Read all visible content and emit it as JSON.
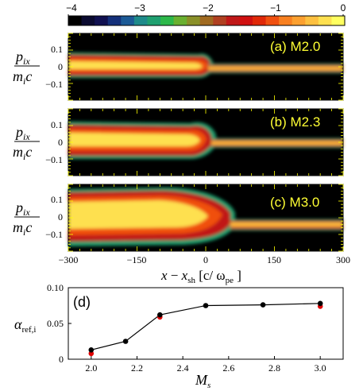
{
  "colorbar": {
    "ticks": [
      "−4",
      "−3",
      "−2",
      "−1",
      "0"
    ],
    "colors": [
      "#000000",
      "#0a0a30",
      "#101050",
      "#14307a",
      "#1c5a96",
      "#1e8a8a",
      "#1fa070",
      "#2db84a",
      "#6ab030",
      "#8a9028",
      "#a06a20",
      "#b04020",
      "#c01818",
      "#d01010",
      "#e02808",
      "#f05010",
      "#f88020",
      "#fca030",
      "#fdc040",
      "#fee050",
      "#ffff60"
    ]
  },
  "panels": [
    {
      "label": "(a) M2.0",
      "ylabel_num": "p",
      "ylabel_num_sub": "ix",
      "ylabel_den": "m",
      "ylabel_den_sub": "i",
      "ylabel_den_tail": "c",
      "yticks": [
        "0.1",
        "0",
        "−0.1"
      ]
    },
    {
      "label": "(b) M2.3",
      "ylabel_num": "p",
      "ylabel_num_sub": "ix",
      "ylabel_den": "m",
      "ylabel_den_sub": "i",
      "ylabel_den_tail": "c",
      "yticks": [
        "0.1",
        "0",
        "−0.1"
      ]
    },
    {
      "label": "(c) M3.0",
      "ylabel_num": "p",
      "ylabel_num_sub": "ix",
      "ylabel_den": "m",
      "ylabel_den_sub": "i",
      "ylabel_den_tail": "c",
      "yticks": [
        "0.1",
        "0",
        "−0.1"
      ]
    }
  ],
  "phase_xaxis": {
    "ticks": [
      "−300",
      "−150",
      "0",
      "150",
      "300"
    ],
    "label_x": "x",
    "label_minus": " − ",
    "label_xsh": "x",
    "label_xsh_sub": "sh",
    "label_unit": " [c/ ω",
    "label_unit_sub": "pe",
    "label_close": " ]"
  },
  "chart_data": {
    "type": "scatter",
    "label": "(d)",
    "xlabel": "M",
    "xlabel_sub": "s",
    "ylabel": "α",
    "ylabel_sub": "ref,i",
    "xlim": [
      1.9,
      3.1
    ],
    "ylim": [
      0,
      0.1
    ],
    "xticks": [
      2.0,
      2.2,
      2.4,
      2.6,
      2.8,
      3.0
    ],
    "xtick_labels": [
      "2.0",
      "2.2",
      "2.4",
      "2.6",
      "2.8",
      "3.0"
    ],
    "yticks": [
      0,
      0.05,
      0.1
    ],
    "ytick_labels": [
      "0",
      "0.05",
      "0.10"
    ],
    "series": [
      {
        "color": "#000000",
        "line": true,
        "x": [
          2.0,
          2.15,
          2.3,
          2.5,
          2.75,
          3.0
        ],
        "y": [
          0.013,
          0.025,
          0.062,
          0.075,
          0.076,
          0.078
        ]
      },
      {
        "color": "#e00000",
        "line": false,
        "x": [
          2.0,
          2.3,
          3.0
        ],
        "y": [
          0.008,
          0.059,
          0.074
        ]
      }
    ]
  }
}
